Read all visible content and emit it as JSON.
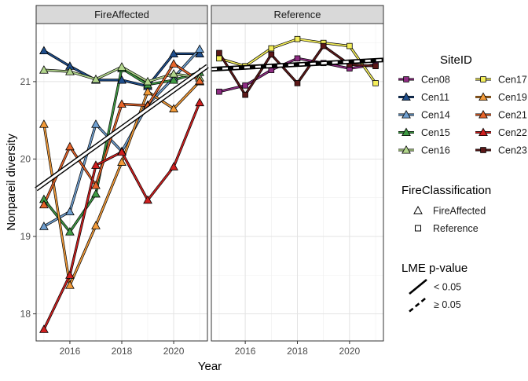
{
  "chart_data": {
    "type": "line",
    "ylabel": "Nonpareil diversity",
    "xlabel": "Year",
    "x_ticks": [
      2016,
      2018,
      2020
    ],
    "y_ticks": [
      18,
      19,
      20,
      21
    ],
    "xlim": [
      2014.7,
      2021.3
    ],
    "ylim": [
      17.65,
      21.75
    ],
    "grid": true,
    "legend_position": "right",
    "facets": [
      "FireAffected",
      "Reference"
    ],
    "years": [
      2015,
      2016,
      2017,
      2018,
      2019,
      2020,
      2021
    ],
    "series": [
      {
        "name": "Cen08",
        "facet": "Reference",
        "color": "#8e2c83",
        "marker": "square",
        "values": [
          20.87,
          20.95,
          21.15,
          21.3,
          21.24,
          21.17,
          21.22
        ]
      },
      {
        "name": "Cen11",
        "facet": "FireAffected",
        "color": "#1f4e8c",
        "marker": "triangle",
        "values": [
          21.4,
          21.2,
          21.02,
          21.02,
          20.94,
          21.36,
          21.36
        ]
      },
      {
        "name": "Cen14",
        "facet": "FireAffected",
        "color": "#6f9fd0",
        "marker": "triangle",
        "values": [
          19.13,
          19.32,
          20.45,
          20.1,
          20.7,
          21.05,
          21.42
        ]
      },
      {
        "name": "Cen15",
        "facet": "FireAffected",
        "color": "#3f9a44",
        "marker": "triangle",
        "values": [
          19.48,
          19.06,
          19.55,
          21.17,
          20.96,
          21.02,
          21.12
        ]
      },
      {
        "name": "Cen16",
        "facet": "FireAffected",
        "color": "#b2d68c",
        "marker": "triangle",
        "values": [
          21.15,
          21.13,
          21.03,
          21.19,
          21.0,
          21.1,
          21.05
        ]
      },
      {
        "name": "Cen17",
        "facet": "Reference",
        "color": "#f4ee5a",
        "marker": "square",
        "values": [
          21.3,
          21.2,
          21.43,
          21.55,
          21.5,
          21.46,
          20.98
        ]
      },
      {
        "name": "Cen19",
        "facet": "FireAffected",
        "color": "#f39b39",
        "marker": "triangle",
        "values": [
          20.45,
          18.37,
          19.14,
          19.96,
          20.87,
          20.65,
          21.0
        ]
      },
      {
        "name": "Cen21",
        "facet": "FireAffected",
        "color": "#e8652a",
        "marker": "triangle",
        "values": [
          19.41,
          20.16,
          19.66,
          20.71,
          20.69,
          21.23,
          21.01
        ]
      },
      {
        "name": "Cen22",
        "facet": "FireAffected",
        "color": "#cf1f1f",
        "marker": "triangle",
        "values": [
          17.8,
          18.5,
          19.92,
          20.09,
          19.47,
          19.9,
          20.73
        ]
      },
      {
        "name": "Cen23",
        "facet": "Reference",
        "color": "#5c1818",
        "marker": "square",
        "values": [
          21.37,
          20.83,
          21.35,
          20.98,
          21.46,
          21.22,
          21.2
        ]
      }
    ],
    "trend_lines": [
      {
        "facet": "FireAffected",
        "x": [
          2014.7,
          2021.3
        ],
        "y": [
          19.61,
          21.2
        ],
        "p": "< 0.05"
      },
      {
        "facet": "Reference",
        "x": [
          2014.7,
          2021.3
        ],
        "y": [
          21.16,
          21.28
        ],
        "p": "≥ 0.05"
      }
    ],
    "legends": {
      "site": {
        "title": "SiteID",
        "columns": [
          [
            "Cen08",
            "Cen11",
            "Cen14",
            "Cen15",
            "Cen16"
          ],
          [
            "Cen17",
            "Cen19",
            "Cen21",
            "Cen22",
            "Cen23"
          ]
        ]
      },
      "fire": {
        "title": "FireClassification",
        "items": [
          {
            "label": "FireAffected",
            "marker": "triangle"
          },
          {
            "label": "Reference",
            "marker": "square"
          }
        ]
      },
      "lme": {
        "title": "LME p-value",
        "items": [
          {
            "label": "< 0.05",
            "dash": "solid"
          },
          {
            "label": "≥ 0.05",
            "dash": "dashed"
          }
        ]
      }
    }
  }
}
